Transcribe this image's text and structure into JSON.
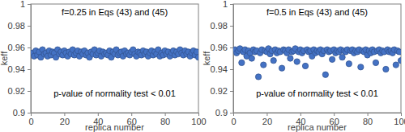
{
  "chart_data": [
    {
      "type": "scatter",
      "xlabel": "replica number",
      "ylabel": "keff",
      "annotations": [
        "f=0.25 in Eqs (43) and (45)",
        "p-value of normality test < 0.01"
      ],
      "color": "#4472c4",
      "marker": "circle",
      "grid": false,
      "xlim": [
        0,
        100
      ],
      "xticks": [
        0,
        20,
        40,
        60,
        80,
        100
      ],
      "ylim": [
        0.9,
        1
      ],
      "yticks": [
        0.9,
        0.92,
        0.94,
        0.96,
        0.98,
        1
      ],
      "x": [
        1,
        2,
        3,
        4,
        5,
        6,
        7,
        8,
        9,
        10,
        11,
        12,
        13,
        14,
        15,
        16,
        17,
        18,
        19,
        20,
        21,
        22,
        23,
        24,
        25,
        26,
        27,
        28,
        29,
        30,
        31,
        32,
        33,
        34,
        35,
        36,
        37,
        38,
        39,
        40,
        41,
        42,
        43,
        44,
        45,
        46,
        47,
        48,
        49,
        50,
        51,
        52,
        53,
        54,
        55,
        56,
        57,
        58,
        59,
        60,
        61,
        62,
        63,
        64,
        65,
        66,
        67,
        68,
        69,
        70,
        71,
        72,
        73,
        74,
        75,
        76,
        77,
        78,
        79,
        80,
        81,
        82,
        83,
        84,
        85,
        86,
        87,
        88,
        89,
        90,
        91,
        92,
        93,
        94,
        95,
        96,
        97,
        98,
        99,
        100
      ],
      "values": [
        0.955,
        0.952,
        0.957,
        0.953,
        0.956,
        0.951,
        0.958,
        0.954,
        0.955,
        0.952,
        0.957,
        0.953,
        0.956,
        0.955,
        0.951,
        0.958,
        0.954,
        0.956,
        0.953,
        0.957,
        0.955,
        0.952,
        0.956,
        0.954,
        0.958,
        0.953,
        0.955,
        0.957,
        0.952,
        0.956,
        0.954,
        0.957,
        0.953,
        0.955,
        0.951,
        0.956,
        0.954,
        0.958,
        0.953,
        0.955,
        0.957,
        0.952,
        0.956,
        0.954,
        0.955,
        0.953,
        0.957,
        0.951,
        0.956,
        0.954,
        0.958,
        0.953,
        0.955,
        0.956,
        0.952,
        0.957,
        0.954,
        0.955,
        0.953,
        0.956,
        0.958,
        0.954,
        0.952,
        0.956,
        0.955,
        0.953,
        0.957,
        0.954,
        0.956,
        0.952,
        0.955,
        0.957,
        0.953,
        0.956,
        0.954,
        0.958,
        0.952,
        0.955,
        0.953,
        0.957,
        0.954,
        0.956,
        0.952,
        0.955,
        0.957,
        0.953,
        0.956,
        0.954,
        0.958,
        0.955,
        0.953,
        0.957,
        0.954,
        0.956,
        0.952,
        0.955,
        0.957,
        0.953,
        0.956,
        0.951
      ]
    },
    {
      "type": "scatter",
      "xlabel": "replica number",
      "ylabel": "keff",
      "annotations": [
        "f=0.5 in Eqs (43) and (45)",
        "p-value of normality test < 0.01"
      ],
      "color": "#4472c4",
      "marker": "circle",
      "grid": false,
      "xlim": [
        0,
        100
      ],
      "xticks": [
        0,
        20,
        40,
        60,
        80,
        100
      ],
      "ylim": [
        0.9,
        1
      ],
      "yticks": [
        0.9,
        0.92,
        0.94,
        0.96,
        0.98,
        1
      ],
      "x": [
        1,
        2,
        3,
        4,
        5,
        6,
        7,
        8,
        9,
        10,
        11,
        12,
        13,
        14,
        15,
        16,
        17,
        18,
        19,
        20,
        21,
        22,
        23,
        24,
        25,
        26,
        27,
        28,
        29,
        30,
        31,
        32,
        33,
        34,
        35,
        36,
        37,
        38,
        39,
        40,
        41,
        42,
        43,
        44,
        45,
        46,
        47,
        48,
        49,
        50,
        51,
        52,
        53,
        54,
        55,
        56,
        57,
        58,
        59,
        60,
        61,
        62,
        63,
        64,
        65,
        66,
        67,
        68,
        69,
        70,
        71,
        72,
        73,
        74,
        75,
        76,
        77,
        78,
        79,
        80,
        81,
        82,
        83,
        84,
        85,
        86,
        87,
        88,
        89,
        90,
        91,
        92,
        93,
        94,
        95,
        96,
        97,
        98,
        99,
        100
      ],
      "values": [
        0.958,
        0.955,
        0.957,
        0.959,
        0.946,
        0.956,
        0.958,
        0.952,
        0.957,
        0.955,
        0.95,
        0.958,
        0.956,
        0.957,
        0.933,
        0.955,
        0.958,
        0.944,
        0.957,
        0.956,
        0.959,
        0.954,
        0.957,
        0.948,
        0.958,
        0.955,
        0.957,
        0.956,
        0.941,
        0.958,
        0.957,
        0.955,
        0.958,
        0.95,
        0.956,
        0.957,
        0.959,
        0.947,
        0.956,
        0.958,
        0.955,
        0.957,
        0.943,
        0.958,
        0.956,
        0.957,
        0.952,
        0.958,
        0.955,
        0.957,
        0.956,
        0.958,
        0.954,
        0.957,
        0.935,
        0.958,
        0.956,
        0.957,
        0.949,
        0.958,
        0.955,
        0.957,
        0.956,
        0.958,
        0.951,
        0.957,
        0.956,
        0.958,
        0.945,
        0.957,
        0.958,
        0.955,
        0.957,
        0.956,
        0.958,
        0.942,
        0.957,
        0.956,
        0.958,
        0.953,
        0.957,
        0.955,
        0.958,
        0.956,
        0.946,
        0.957,
        0.958,
        0.955,
        0.957,
        0.956,
        0.94,
        0.958,
        0.956,
        0.957,
        0.955,
        0.958,
        0.944,
        0.957,
        0.956,
        0.948
      ]
    }
  ]
}
